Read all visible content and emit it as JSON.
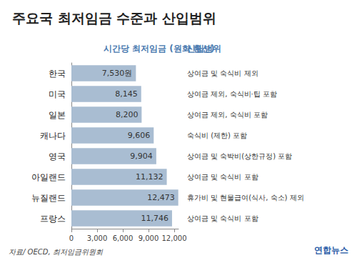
{
  "chart_data": {
    "type": "bar",
    "orientation": "horizontal",
    "title": "주요국 최저임금 수준과 산입범위",
    "value_axis_label": "시간당 최저임금 (원화 환산)",
    "scope_label": "산입범위",
    "categories": [
      "한국",
      "미국",
      "일본",
      "캐나다",
      "영국",
      "아일랜드",
      "뉴질랜드",
      "프랑스"
    ],
    "values": [
      7530,
      8145,
      8200,
      9606,
      9904,
      11132,
      12473,
      11746
    ],
    "value_labels": [
      "7,530원",
      "8,145",
      "8,200",
      "9,606",
      "9,904",
      "11,132",
      "12,473",
      "11,746"
    ],
    "scope": [
      "상여금 및 숙식비 제외",
      "상여금 제외, 숙식비·팁 포함",
      "상여금 제외, 숙식비 포함",
      "숙식비 (제한) 포함",
      "상여금 및 숙박비(상한규정) 포함",
      "상여금 및 숙식비 포함",
      "휴가비 및 현물급여(식사, 숙소) 제외",
      "상여금 및 숙식비 포함"
    ],
    "color": "#a9bdd2",
    "xlim": [
      0,
      12500
    ],
    "xticks": [
      0,
      3000,
      6000,
      9000,
      12000
    ],
    "grid": false,
    "data_labels": true,
    "source": "자료/ OECD, 최저임금위원회",
    "credit": "연합뉴스"
  }
}
